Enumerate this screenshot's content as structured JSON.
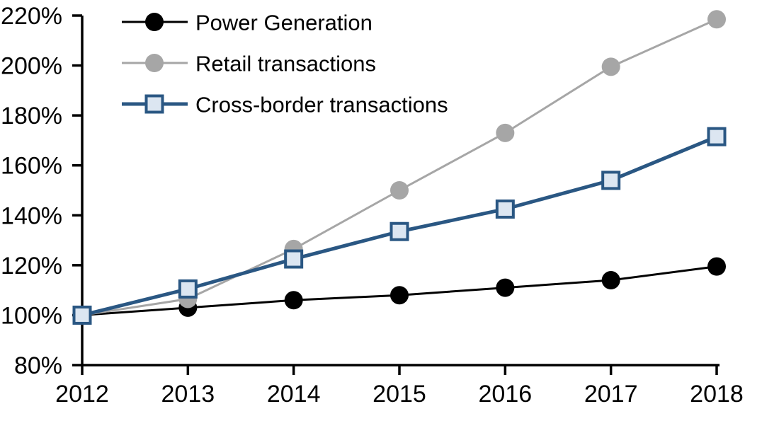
{
  "chart_data": {
    "type": "line",
    "title": "",
    "xlabel": "",
    "ylabel": "",
    "categories": [
      "2012",
      "2013",
      "2014",
      "2015",
      "2016",
      "2017",
      "2018"
    ],
    "series": [
      {
        "name": "Power Generation",
        "values": [
          100,
          103,
          106,
          108,
          111,
          114,
          119.5
        ],
        "color": "#000000",
        "marker": "circle",
        "marker_fill": "#000000",
        "line_width": 3
      },
      {
        "name": "Retail transactions",
        "values": [
          100,
          106.5,
          126.5,
          150,
          173,
          199.5,
          218.5
        ],
        "color": "#A6A6A6",
        "marker": "circle",
        "marker_fill": "#A6A6A6",
        "line_width": 3
      },
      {
        "name": "Cross-border transactions",
        "values": [
          100,
          110.5,
          122.5,
          133.5,
          142.5,
          154,
          171.5
        ],
        "color": "#2A5783",
        "marker": "square",
        "marker_fill": "#DCE6F1",
        "line_width": 5
      }
    ],
    "y_axis": {
      "min": 80,
      "max": 220,
      "step": 20,
      "tick_labels": [
        "220%",
        "200%",
        "180%",
        "160%",
        "140%",
        "120%",
        "100%",
        "80%"
      ]
    },
    "x_axis": {
      "tick_labels": [
        "2012",
        "2013",
        "2014",
        "2015",
        "2016",
        "2017",
        "2018"
      ]
    },
    "legend": {
      "position": "top-left",
      "entries": [
        "Power Generation",
        "Retail transactions",
        "Cross-border transactions"
      ]
    },
    "grid": "off",
    "colors": {
      "axis": "#000000",
      "background": "#FFFFFF"
    }
  }
}
